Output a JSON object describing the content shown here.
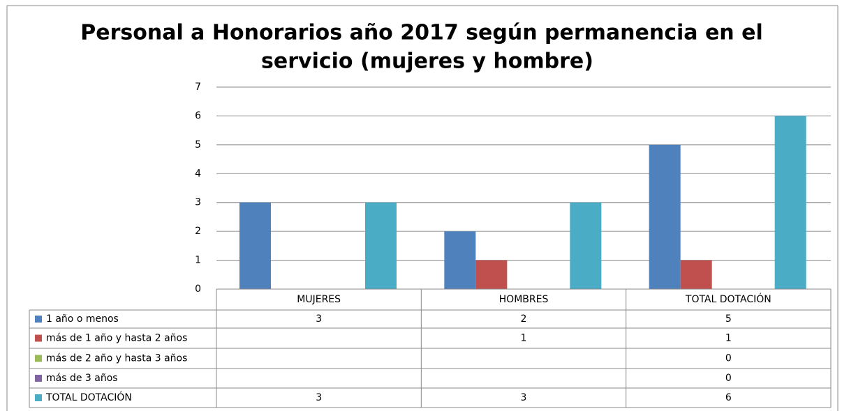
{
  "chart_data": {
    "type": "bar",
    "title": [
      "Personal a Honorarios año 2017 según permanencia en el",
      "servicio (mujeres y hombre)"
    ],
    "categories": [
      "MUJERES",
      "HOMBRES",
      "TOTAL DOTACIÓN"
    ],
    "series": [
      {
        "name": "1 año o menos",
        "color": "#4f81bd",
        "values": [
          3,
          2,
          5
        ]
      },
      {
        "name": "más de 1 año y hasta 2 años",
        "color": "#c0504d",
        "values": [
          null,
          1,
          1
        ]
      },
      {
        "name": "más de 2 año y hasta 3 años",
        "color": "#9bbb59",
        "values": [
          null,
          null,
          0
        ]
      },
      {
        "name": "más de 3 años",
        "color": "#8064a2",
        "values": [
          null,
          null,
          0
        ]
      },
      {
        "name": "TOTAL DOTACIÓN",
        "color": "#4bacc6",
        "values": [
          3,
          3,
          6
        ]
      }
    ],
    "ylim": [
      0,
      7
    ],
    "yticks": [
      0,
      1,
      2,
      3,
      4,
      5,
      6,
      7
    ],
    "grid": true,
    "data_table": true
  }
}
